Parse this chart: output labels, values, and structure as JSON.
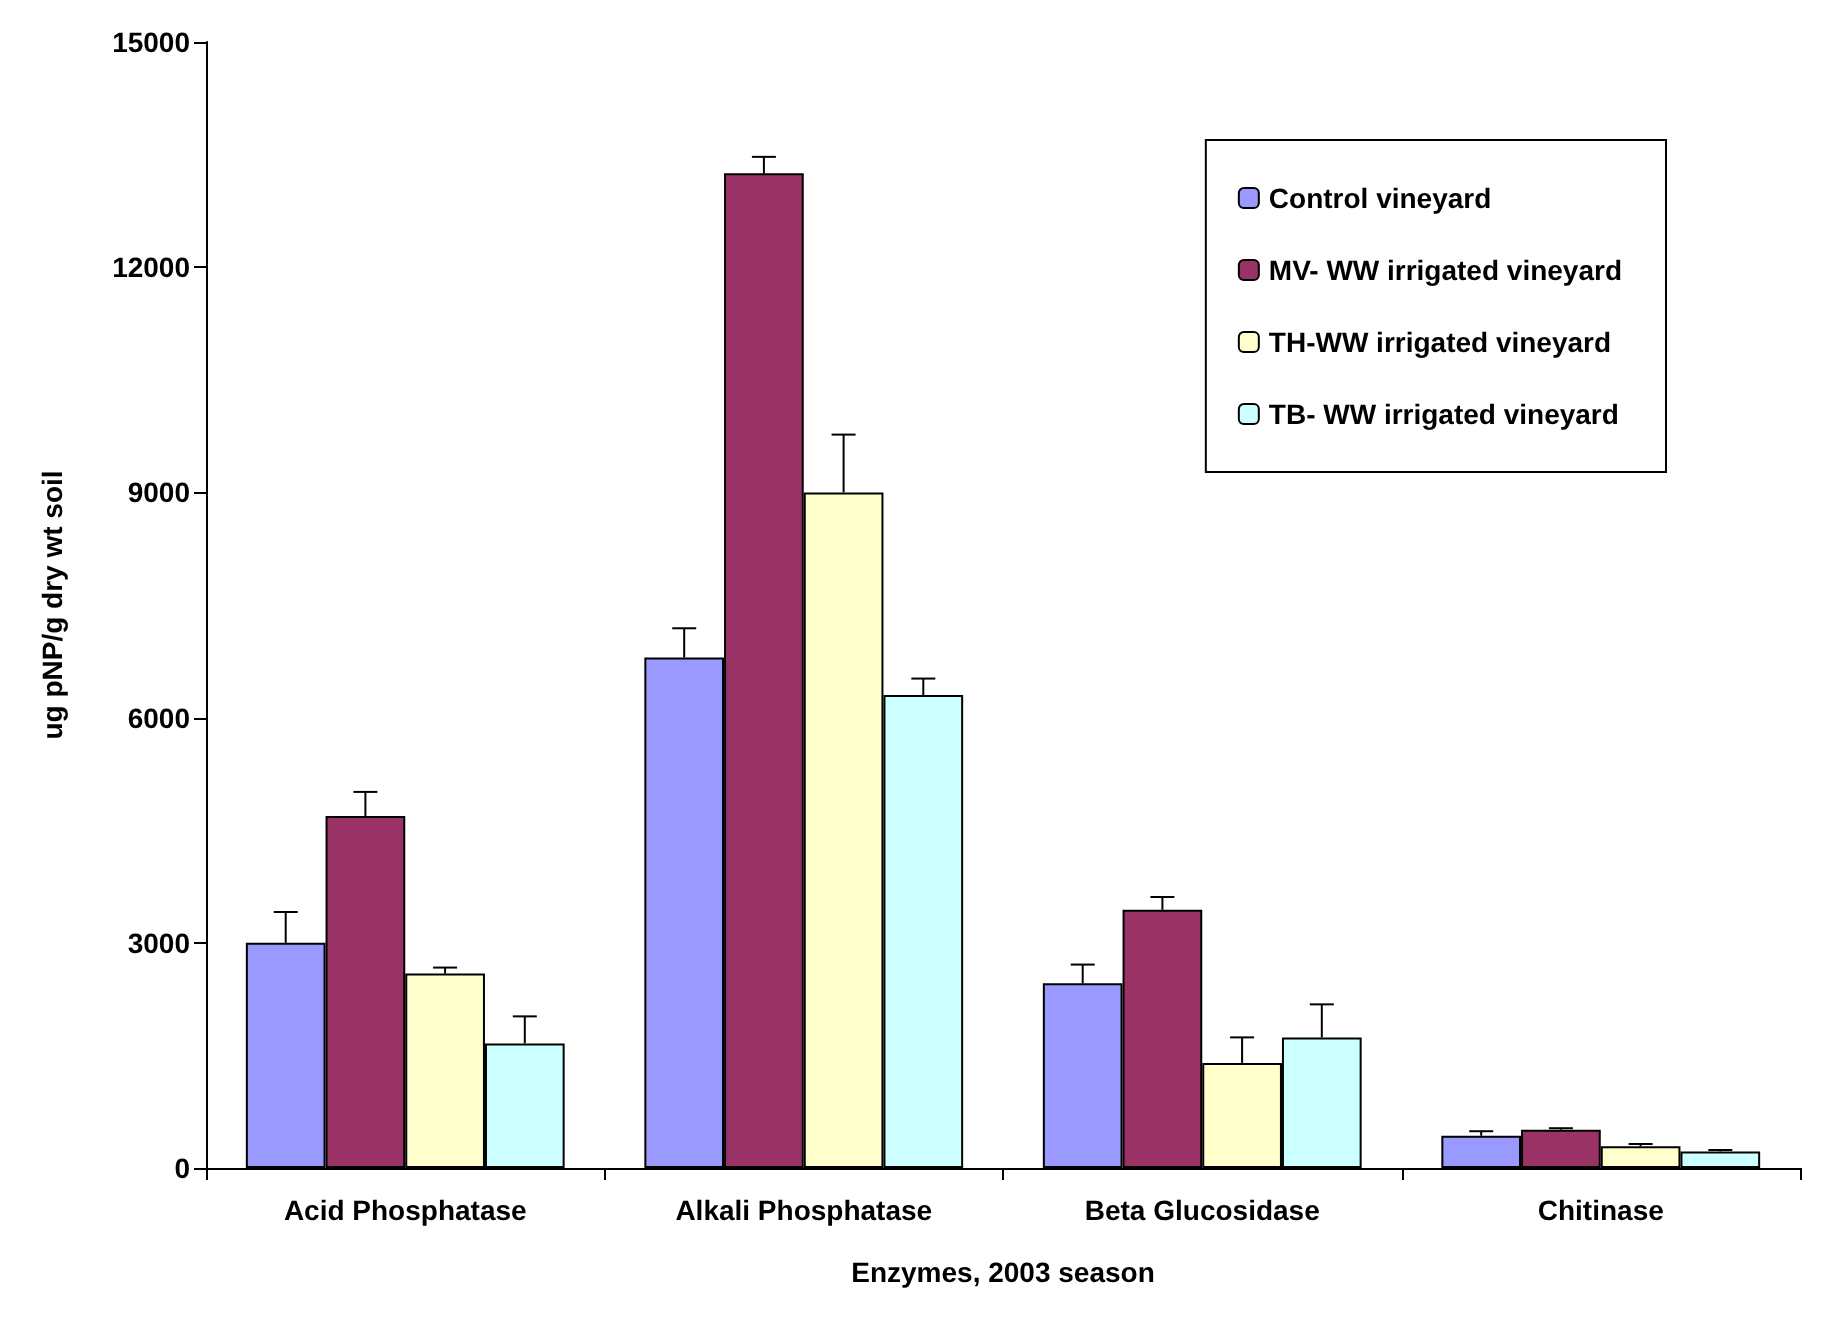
{
  "chart_data": {
    "type": "bar",
    "xlabel": "Enzymes, 2003 season",
    "ylabel": "ug pNP/g dry wt soil",
    "categories": [
      "Acid Phosphatase",
      "Alkali Phosphatase",
      "Beta Glucosidase",
      "Chitinase"
    ],
    "series": [
      {
        "name": "Control vineyard",
        "color": "#9999ff",
        "values": [
          3000,
          6800,
          2460,
          430
        ],
        "errors": [
          [
            3000,
            3410
          ],
          [
            6800,
            7190
          ],
          [
            2460,
            2710
          ],
          [
            430,
            490
          ]
        ]
      },
      {
        "name": "MV- WW irrigated vineyard",
        "color": "#993366",
        "values": [
          4690,
          13250,
          3440,
          510
        ],
        "errors": [
          [
            4690,
            5010
          ],
          [
            13250,
            13470
          ],
          [
            3440,
            3610
          ],
          [
            510,
            530
          ]
        ]
      },
      {
        "name": "TH-WW irrigated vineyard",
        "color": "#ffffcc",
        "values": [
          2590,
          9000,
          1400,
          290
        ],
        "errors": [
          [
            2590,
            2670
          ],
          [
            9000,
            9770
          ],
          [
            1400,
            1740
          ],
          [
            290,
            320
          ]
        ]
      },
      {
        "name": "TB- WW irrigated vineyard",
        "color": "#ccffff",
        "values": [
          1660,
          6300,
          1740,
          220
        ],
        "errors": [
          [
            1660,
            2020
          ],
          [
            6300,
            6520
          ],
          [
            1740,
            2180
          ],
          [
            220,
            240
          ]
        ]
      }
    ],
    "ylim": [
      0,
      15000
    ],
    "yticks": [
      0,
      3000,
      6000,
      9000,
      12000,
      15000
    ],
    "grid": false,
    "legend": "top right"
  }
}
